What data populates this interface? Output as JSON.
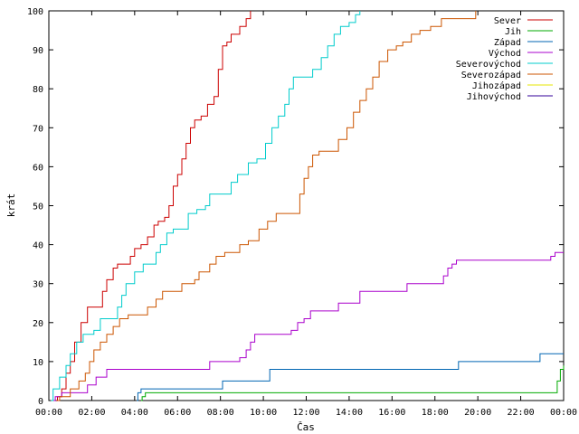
{
  "chart_data": {
    "type": "line",
    "xlabel": "Čas",
    "ylabel": "krát",
    "xlim": [
      0,
      24
    ],
    "ylim": [
      0,
      100
    ],
    "x_ticks": [
      "00:00",
      "02:00",
      "04:00",
      "06:00",
      "08:00",
      "10:00",
      "12:00",
      "14:00",
      "16:00",
      "18:00",
      "20:00",
      "22:00",
      "00:00"
    ],
    "y_ticks": [
      0,
      10,
      20,
      30,
      40,
      50,
      60,
      70,
      80,
      90,
      100
    ],
    "legend_position": "top-right",
    "series": [
      {
        "name": "Sever",
        "color": "#cc0000",
        "points": [
          [
            0.35,
            0
          ],
          [
            0.4,
            1
          ],
          [
            0.6,
            3
          ],
          [
            0.8,
            7
          ],
          [
            1.0,
            10
          ],
          [
            1.2,
            15
          ],
          [
            1.5,
            20
          ],
          [
            1.8,
            24
          ],
          [
            2.4,
            24
          ],
          [
            2.5,
            28
          ],
          [
            2.7,
            31
          ],
          [
            3.0,
            34
          ],
          [
            3.2,
            35
          ],
          [
            3.6,
            35
          ],
          [
            3.8,
            37
          ],
          [
            4.0,
            39
          ],
          [
            4.3,
            40
          ],
          [
            4.6,
            42
          ],
          [
            4.9,
            45
          ],
          [
            5.1,
            46
          ],
          [
            5.4,
            47
          ],
          [
            5.6,
            50
          ],
          [
            5.8,
            55
          ],
          [
            6.0,
            58
          ],
          [
            6.2,
            62
          ],
          [
            6.4,
            66
          ],
          [
            6.6,
            70
          ],
          [
            6.8,
            72
          ],
          [
            7.1,
            73
          ],
          [
            7.4,
            76
          ],
          [
            7.7,
            78
          ],
          [
            7.9,
            85
          ],
          [
            8.1,
            91
          ],
          [
            8.3,
            92
          ],
          [
            8.5,
            94
          ],
          [
            8.9,
            96
          ],
          [
            9.2,
            98
          ],
          [
            9.4,
            100
          ]
        ]
      },
      {
        "name": "Jih",
        "color": "#00aa00",
        "points": [
          [
            4.3,
            0
          ],
          [
            4.35,
            1
          ],
          [
            4.5,
            2
          ],
          [
            23.6,
            2
          ],
          [
            23.7,
            5
          ],
          [
            23.85,
            8
          ],
          [
            24,
            9
          ]
        ]
      },
      {
        "name": "Západ",
        "color": "#0066b3",
        "points": [
          [
            4.1,
            0
          ],
          [
            4.15,
            2
          ],
          [
            4.3,
            3
          ],
          [
            8.0,
            3
          ],
          [
            8.1,
            5
          ],
          [
            10.2,
            5
          ],
          [
            10.3,
            8
          ],
          [
            19.0,
            8
          ],
          [
            19.1,
            10
          ],
          [
            22.8,
            10
          ],
          [
            22.9,
            12
          ],
          [
            24,
            12
          ]
        ]
      },
      {
        "name": "Východ",
        "color": "#aa00cc",
        "points": [
          [
            0.2,
            0
          ],
          [
            0.3,
            1
          ],
          [
            0.6,
            2
          ],
          [
            1.6,
            2
          ],
          [
            1.8,
            4
          ],
          [
            2.2,
            6
          ],
          [
            2.7,
            8
          ],
          [
            7.3,
            8
          ],
          [
            7.5,
            10
          ],
          [
            8.5,
            10
          ],
          [
            8.9,
            11
          ],
          [
            9.2,
            13
          ],
          [
            9.4,
            15
          ],
          [
            9.6,
            17
          ],
          [
            11.0,
            17
          ],
          [
            11.3,
            18
          ],
          [
            11.6,
            20
          ],
          [
            11.9,
            21
          ],
          [
            12.2,
            23
          ],
          [
            13.3,
            23
          ],
          [
            13.5,
            25
          ],
          [
            14.3,
            25
          ],
          [
            14.5,
            28
          ],
          [
            16.5,
            28
          ],
          [
            16.7,
            30
          ],
          [
            18.2,
            30
          ],
          [
            18.4,
            32
          ],
          [
            18.6,
            34
          ],
          [
            18.8,
            35
          ],
          [
            19.0,
            36
          ],
          [
            23.2,
            36
          ],
          [
            23.4,
            37
          ],
          [
            23.6,
            38
          ],
          [
            24,
            38
          ]
        ]
      },
      {
        "name": "Severovýchod",
        "color": "#00cccc",
        "points": [
          [
            0.1,
            0
          ],
          [
            0.2,
            3
          ],
          [
            0.5,
            6
          ],
          [
            0.8,
            9
          ],
          [
            1.0,
            12
          ],
          [
            1.3,
            15
          ],
          [
            1.6,
            17
          ],
          [
            2.1,
            18
          ],
          [
            2.4,
            21
          ],
          [
            3.0,
            21
          ],
          [
            3.2,
            24
          ],
          [
            3.4,
            27
          ],
          [
            3.6,
            30
          ],
          [
            4.0,
            33
          ],
          [
            4.4,
            35
          ],
          [
            5.0,
            38
          ],
          [
            5.2,
            40
          ],
          [
            5.5,
            43
          ],
          [
            5.8,
            44
          ],
          [
            6.3,
            44
          ],
          [
            6.5,
            48
          ],
          [
            6.9,
            49
          ],
          [
            7.3,
            50
          ],
          [
            7.5,
            53
          ],
          [
            8.3,
            53
          ],
          [
            8.5,
            56
          ],
          [
            8.8,
            58
          ],
          [
            9.3,
            61
          ],
          [
            9.7,
            62
          ],
          [
            10.1,
            66
          ],
          [
            10.4,
            70
          ],
          [
            10.7,
            73
          ],
          [
            11.0,
            76
          ],
          [
            11.2,
            80
          ],
          [
            11.4,
            83
          ],
          [
            12.0,
            83
          ],
          [
            12.3,
            85
          ],
          [
            12.7,
            88
          ],
          [
            13.0,
            91
          ],
          [
            13.3,
            94
          ],
          [
            13.6,
            96
          ],
          [
            14.0,
            97
          ],
          [
            14.3,
            99
          ],
          [
            14.5,
            100
          ]
        ]
      },
      {
        "name": "Severozápad",
        "color": "#cc5500",
        "points": [
          [
            0.4,
            0
          ],
          [
            0.5,
            1
          ],
          [
            1.0,
            3
          ],
          [
            1.4,
            5
          ],
          [
            1.7,
            7
          ],
          [
            1.9,
            10
          ],
          [
            2.1,
            13
          ],
          [
            2.4,
            15
          ],
          [
            2.7,
            17
          ],
          [
            3.0,
            19
          ],
          [
            3.3,
            21
          ],
          [
            3.7,
            22
          ],
          [
            4.3,
            22
          ],
          [
            4.6,
            24
          ],
          [
            5.0,
            26
          ],
          [
            5.3,
            28
          ],
          [
            6.0,
            28
          ],
          [
            6.2,
            30
          ],
          [
            6.8,
            31
          ],
          [
            7.0,
            33
          ],
          [
            7.5,
            35
          ],
          [
            7.8,
            37
          ],
          [
            8.2,
            38
          ],
          [
            8.7,
            38
          ],
          [
            8.9,
            40
          ],
          [
            9.3,
            41
          ],
          [
            9.8,
            44
          ],
          [
            10.2,
            46
          ],
          [
            10.6,
            48
          ],
          [
            11.5,
            48
          ],
          [
            11.7,
            53
          ],
          [
            11.9,
            57
          ],
          [
            12.1,
            60
          ],
          [
            12.3,
            63
          ],
          [
            12.6,
            64
          ],
          [
            13.2,
            64
          ],
          [
            13.5,
            67
          ],
          [
            13.9,
            70
          ],
          [
            14.2,
            74
          ],
          [
            14.5,
            77
          ],
          [
            14.8,
            80
          ],
          [
            15.1,
            83
          ],
          [
            15.4,
            87
          ],
          [
            15.8,
            90
          ],
          [
            16.2,
            91
          ],
          [
            16.5,
            92
          ],
          [
            16.9,
            94
          ],
          [
            17.3,
            95
          ],
          [
            17.8,
            96
          ],
          [
            18.3,
            98
          ],
          [
            19.8,
            98
          ],
          [
            19.9,
            100
          ]
        ]
      },
      {
        "name": "Jihozápad",
        "color": "#e6e600",
        "points": []
      },
      {
        "name": "Jihovýchod",
        "color": "#330099",
        "points": []
      }
    ]
  }
}
